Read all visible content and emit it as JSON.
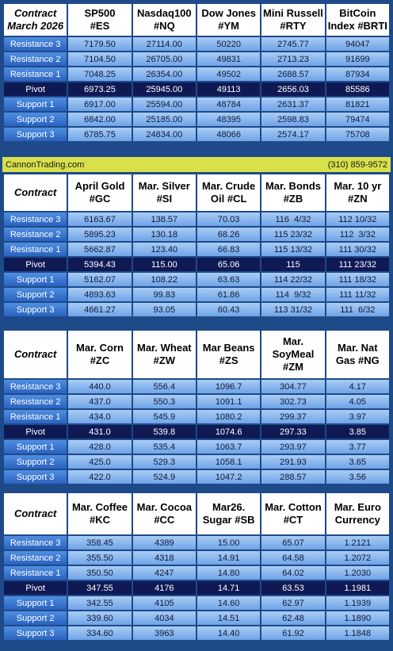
{
  "sections": [
    {
      "header_first": [
        "Contract",
        "March 2026"
      ],
      "headers": [
        [
          "SP500",
          "#ES"
        ],
        [
          "Nasdaq100",
          "#NQ"
        ],
        [
          "Dow Jones",
          "#YM"
        ],
        [
          "Mini Russell",
          "#RTY"
        ],
        [
          "BitCoin",
          "Index #BRTI"
        ]
      ],
      "rows": [
        {
          "label": "Resistance 3",
          "values": [
            "7179.50",
            "27114.00",
            "50220",
            "2745.77",
            "94047"
          ]
        },
        {
          "label": "Resistance 2",
          "values": [
            "7104.50",
            "26705.00",
            "49831",
            "2713.23",
            "91699"
          ]
        },
        {
          "label": "Resistance 1",
          "values": [
            "7048.25",
            "26354.00",
            "49502",
            "2688.57",
            "87934"
          ]
        },
        {
          "label": "Pivot",
          "values": [
            "6973.25",
            "25945.00",
            "49113",
            "2656.03",
            "85586"
          ]
        },
        {
          "label": "Support 1",
          "values": [
            "6917.00",
            "25594.00",
            "48784",
            "2631.37",
            "81821"
          ]
        },
        {
          "label": "Support 2",
          "values": [
            "6842.00",
            "25185.00",
            "48395",
            "2598.83",
            "79474"
          ]
        },
        {
          "label": "Support 3",
          "values": [
            "6785.75",
            "24834.00",
            "48066",
            "2574.17",
            "75708"
          ]
        }
      ]
    },
    {
      "header_first": [
        "Contract"
      ],
      "headers": [
        [
          "April Gold",
          "#GC"
        ],
        [
          "Mar. Silver",
          "#SI"
        ],
        [
          "Mar. Crude",
          "Oil #CL"
        ],
        [
          "Mar. Bonds",
          "#ZB"
        ],
        [
          "Mar. 10 yr",
          "#ZN"
        ]
      ],
      "rows": [
        {
          "label": "Resistance 3",
          "values": [
            "6163.67",
            "138.57",
            "70.03",
            "116  4/32",
            "112 10/32"
          ]
        },
        {
          "label": "Resistance 2",
          "values": [
            "5895.23",
            "130.18",
            "68.26",
            "115 23/32",
            "112  3/32"
          ]
        },
        {
          "label": "Resistance 1",
          "values": [
            "5662.87",
            "123.40",
            "66.83",
            "115 13/32",
            "111 30/32"
          ]
        },
        {
          "label": "Pivot",
          "values": [
            "5394.43",
            "115.00",
            "65.06",
            "115",
            "111 23/32"
          ]
        },
        {
          "label": "Support 1",
          "values": [
            "5162.07",
            "108.22",
            "63.63",
            "114 22/32",
            "111 18/32"
          ]
        },
        {
          "label": "Support 2",
          "values": [
            "4893.63",
            "99.83",
            "61.86",
            "114  9/32",
            "111 11/32"
          ]
        },
        {
          "label": "Support 3",
          "values": [
            "4661.27",
            "93.05",
            "60.43",
            "113 31/32",
            "111  6/32"
          ]
        }
      ]
    },
    {
      "header_first": [
        "Contract"
      ],
      "headers": [
        [
          "Mar. Corn",
          "#ZC"
        ],
        [
          "Mar.  Wheat",
          "#ZW"
        ],
        [
          "Mar Beans",
          "#ZS"
        ],
        [
          "Mar.",
          "SoyMeal",
          "#ZM"
        ],
        [
          "Mar. Nat",
          "Gas #NG"
        ]
      ],
      "rows": [
        {
          "label": "Resistance 3",
          "values": [
            "440.0",
            "556.4",
            "1096.7",
            "304.77",
            "4.17"
          ]
        },
        {
          "label": "Resistance 2",
          "values": [
            "437.0",
            "550.3",
            "1091.1",
            "302.73",
            "4.05"
          ]
        },
        {
          "label": "Resistance 1",
          "values": [
            "434.0",
            "545.9",
            "1080.2",
            "299.37",
            "3.97"
          ]
        },
        {
          "label": "Pivot",
          "values": [
            "431.0",
            "539.8",
            "1074.6",
            "297.33",
            "3.85"
          ]
        },
        {
          "label": "Support 1",
          "values": [
            "428.0",
            "535.4",
            "1063.7",
            "293.97",
            "3.77"
          ]
        },
        {
          "label": "Support 2",
          "values": [
            "425.0",
            "529.3",
            "1058.1",
            "291.93",
            "3.65"
          ]
        },
        {
          "label": "Support 3",
          "values": [
            "422.0",
            "524.9",
            "1047.2",
            "288.57",
            "3.56"
          ]
        }
      ]
    },
    {
      "header_first": [
        "Contract"
      ],
      "headers": [
        [
          "Mar. Coffee",
          "#KC"
        ],
        [
          "Mar. Cocoa",
          "#CC"
        ],
        [
          "Mar26.",
          "Sugar #SB"
        ],
        [
          "Mar. Cotton",
          "#CT"
        ],
        [
          "Mar. Euro",
          "Currency"
        ]
      ],
      "rows": [
        {
          "label": "Resistance 3",
          "values": [
            "358.45",
            "4389",
            "15.00",
            "65.07",
            "1.2121"
          ]
        },
        {
          "label": "Resistance 2",
          "values": [
            "355.50",
            "4318",
            "14.91",
            "64.58",
            "1.2072"
          ]
        },
        {
          "label": "Resistance 1",
          "values": [
            "350.50",
            "4247",
            "14.80",
            "64.02",
            "1.2030"
          ]
        },
        {
          "label": "Pivot",
          "values": [
            "347.55",
            "4176",
            "14.71",
            "63.53",
            "1.1981"
          ]
        },
        {
          "label": "Support 1",
          "values": [
            "342.55",
            "4105",
            "14.60",
            "62.97",
            "1.1939"
          ]
        },
        {
          "label": "Support 2",
          "values": [
            "339.60",
            "4034",
            "14.51",
            "62.48",
            "1.1890"
          ]
        },
        {
          "label": "Support 3",
          "values": [
            "334.60",
            "3963",
            "14.40",
            "61.92",
            "1.1848"
          ]
        }
      ]
    }
  ],
  "banner": {
    "left": "CannonTrading.com",
    "right": "(310) 859-9572"
  }
}
